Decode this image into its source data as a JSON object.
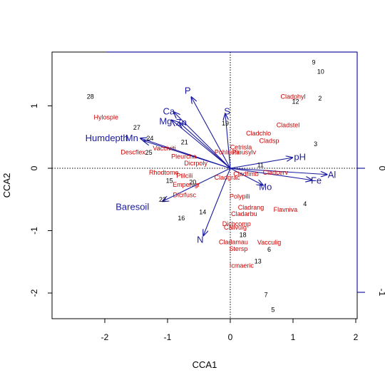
{
  "chart_data": {
    "type": "scatter",
    "subtype": "cca-triplot",
    "xlabel": "CCA1",
    "ylabel": "CCA2",
    "xlim": [
      -2.9,
      2.0
    ],
    "ylim": [
      -2.4,
      1.85
    ],
    "x_ticks": [
      "-2",
      "-1",
      "0",
      "1",
      "2"
    ],
    "y_ticks": [
      "-2",
      "-1",
      "0",
      "1"
    ],
    "right_axis_ticks": [
      "0",
      "-1"
    ],
    "colors": {
      "sites": "#000000",
      "species": "#cc0000",
      "biplot": "#1a1aa0"
    },
    "sites": [
      {
        "label": "28",
        "x": -2.23,
        "y": 1.15
      },
      {
        "label": "9",
        "x": 1.33,
        "y": 1.7
      },
      {
        "label": "10",
        "x": 1.44,
        "y": 1.55
      },
      {
        "label": "2",
        "x": 1.43,
        "y": 1.12
      },
      {
        "label": "12",
        "x": 1.04,
        "y": 1.07
      },
      {
        "label": "3",
        "x": 1.36,
        "y": 0.39
      },
      {
        "label": "4",
        "x": 1.19,
        "y": -0.57
      },
      {
        "label": "27",
        "x": -1.49,
        "y": 0.65
      },
      {
        "label": "24",
        "x": -1.28,
        "y": 0.48
      },
      {
        "label": "25",
        "x": -1.3,
        "y": 0.25
      },
      {
        "label": "21",
        "x": -0.73,
        "y": 0.42
      },
      {
        "label": "19",
        "x": -0.08,
        "y": 0.72
      },
      {
        "label": "11",
        "x": 0.48,
        "y": 0.05
      },
      {
        "label": "15",
        "x": -0.97,
        "y": -0.2
      },
      {
        "label": "20",
        "x": -0.6,
        "y": -0.22
      },
      {
        "label": "22",
        "x": -1.08,
        "y": -0.5
      },
      {
        "label": "16",
        "x": -0.78,
        "y": -0.8
      },
      {
        "label": "14",
        "x": -0.44,
        "y": -0.7
      },
      {
        "label": "18",
        "x": 0.2,
        "y": -1.07
      },
      {
        "label": "6",
        "x": 0.62,
        "y": -1.3
      },
      {
        "label": "13",
        "x": 0.44,
        "y": -1.49
      },
      {
        "label": "7",
        "x": 0.57,
        "y": -2.03
      },
      {
        "label": "5",
        "x": 0.68,
        "y": -2.27
      }
    ],
    "species": [
      {
        "label": "Hylosple",
        "x": -1.98,
        "y": 0.82
      },
      {
        "label": "Cladphyl",
        "x": 1.0,
        "y": 1.15
      },
      {
        "label": "Cladstel",
        "x": 0.92,
        "y": 0.69
      },
      {
        "label": "Cladchlo",
        "x": 0.45,
        "y": 0.56
      },
      {
        "label": "Cladsp",
        "x": 0.62,
        "y": 0.44
      },
      {
        "label": "Cetrisla",
        "x": 0.17,
        "y": 0.34
      },
      {
        "label": "Pohlnuta",
        "x": -0.05,
        "y": 0.26
      },
      {
        "label": "Pinusylv",
        "x": 0.22,
        "y": 0.26
      },
      {
        "label": "Vacciviti",
        "x": -1.05,
        "y": 0.32
      },
      {
        "label": "Pleurcha",
        "x": -0.74,
        "y": 0.19
      },
      {
        "label": "Descflex",
        "x": -1.55,
        "y": 0.26
      },
      {
        "label": "Dicrpoly",
        "x": -0.55,
        "y": 0.08
      },
      {
        "label": "Cladcerv",
        "x": 0.72,
        "y": -0.07
      },
      {
        "label": "Rhodtome",
        "x": -1.06,
        "y": -0.07
      },
      {
        "label": "Ptilcili",
        "x": -0.73,
        "y": -0.12
      },
      {
        "label": "Cladgrac",
        "x": -0.05,
        "y": -0.15
      },
      {
        "label": "Cladfimb",
        "x": 0.25,
        "y": -0.09
      },
      {
        "label": "Empenigr",
        "x": -0.7,
        "y": -0.26
      },
      {
        "label": "Polypili",
        "x": 0.15,
        "y": -0.45
      },
      {
        "label": "Dicrfusc",
        "x": -0.73,
        "y": -0.43
      },
      {
        "label": "Cladrang",
        "x": 0.33,
        "y": -0.63
      },
      {
        "label": "Flavniva",
        "x": 0.88,
        "y": -0.66
      },
      {
        "label": "Cladarbu",
        "x": 0.22,
        "y": -0.73
      },
      {
        "label": "Dichcomp",
        "x": 0.1,
        "y": -0.89
      },
      {
        "label": "Callvulg",
        "x": 0.08,
        "y": -0.95
      },
      {
        "label": "Cladamau",
        "x": 0.05,
        "y": -1.18
      },
      {
        "label": "Vacculig",
        "x": 0.62,
        "y": -1.19
      },
      {
        "label": "Stersp",
        "x": 0.13,
        "y": -1.29
      },
      {
        "label": "Icmaeric",
        "x": 0.18,
        "y": -1.56
      }
    ],
    "biplot": [
      {
        "label": "P",
        "x": -0.62,
        "y": 1.14,
        "lx": -0.68,
        "ly": 1.24
      },
      {
        "label": "S",
        "x": -0.08,
        "y": 0.87,
        "lx": -0.05,
        "ly": 0.91
      },
      {
        "label": "Ca",
        "x": -0.9,
        "y": 0.9,
        "lx": -0.98,
        "ly": 0.91
      },
      {
        "label": "Mg",
        "x": -0.93,
        "y": 0.77,
        "lx": -1.03,
        "ly": 0.75
      },
      {
        "label": "Zn",
        "x": -0.81,
        "y": 0.73,
        "lx": -0.78,
        "ly": 0.73
      },
      {
        "label": "Mn",
        "x": -1.43,
        "y": 0.48,
        "lx": -1.57,
        "ly": 0.48
      },
      {
        "label": "Humdepth",
        "x": -1.38,
        "y": 0.44,
        "lx": -1.97,
        "ly": 0.48
      },
      {
        "label": "pH",
        "x": 0.99,
        "y": 0.17,
        "lx": 1.11,
        "ly": 0.18
      },
      {
        "label": "Al",
        "x": 1.54,
        "y": -0.1,
        "lx": 1.62,
        "ly": -0.11
      },
      {
        "label": "Fe",
        "x": 1.3,
        "y": -0.19,
        "lx": 1.37,
        "ly": -0.2
      },
      {
        "label": "Mo",
        "x": 0.52,
        "y": -0.27,
        "lx": 0.56,
        "ly": -0.3
      },
      {
        "label": "Baresoil",
        "x": -1.08,
        "y": -0.53,
        "lx": -1.56,
        "ly": -0.62
      },
      {
        "label": "N",
        "x": -0.43,
        "y": -1.08,
        "lx": -0.48,
        "ly": -1.15
      }
    ]
  }
}
